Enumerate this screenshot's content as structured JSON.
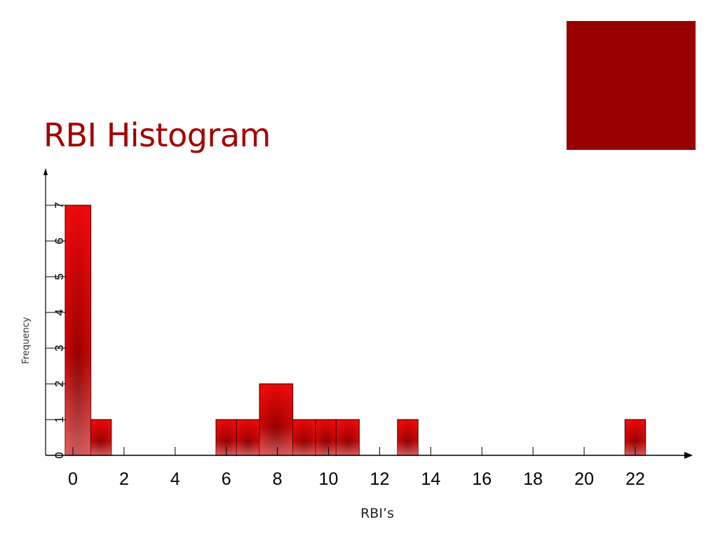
{
  "slide": {
    "title": "RBI Histogram",
    "title_color": "#a30000",
    "accent_color": "#990000"
  },
  "chart_data": {
    "type": "bar",
    "title": "RBI Histogram",
    "xlabel": "RBI’s",
    "ylabel": "Frequency",
    "bins": [
      {
        "x0": -0.3,
        "x1": 0.7,
        "value": 7
      },
      {
        "x0": 0.7,
        "x1": 1.5,
        "value": 1
      },
      {
        "x0": 5.6,
        "x1": 6.4,
        "value": 1
      },
      {
        "x0": 6.4,
        "x1": 7.3,
        "value": 1
      },
      {
        "x0": 7.3,
        "x1": 8.6,
        "value": 2
      },
      {
        "x0": 8.6,
        "x1": 9.5,
        "value": 1
      },
      {
        "x0": 9.5,
        "x1": 10.3,
        "value": 1
      },
      {
        "x0": 10.3,
        "x1": 11.2,
        "value": 1
      },
      {
        "x0": 12.7,
        "x1": 13.5,
        "value": 1
      },
      {
        "x0": 21.6,
        "x1": 22.4,
        "value": 1
      }
    ],
    "xticks": [
      0,
      2,
      4,
      6,
      8,
      10,
      12,
      14,
      16,
      18,
      20,
      22
    ],
    "yticks": [
      0,
      1,
      2,
      3,
      4,
      5,
      6,
      7
    ],
    "xlim": [
      -0.3,
      24
    ],
    "ylim": [
      0,
      7.9
    ],
    "bar_color": "#ee0a0a",
    "bar_dark_color": "#8a0000",
    "grid": false
  }
}
